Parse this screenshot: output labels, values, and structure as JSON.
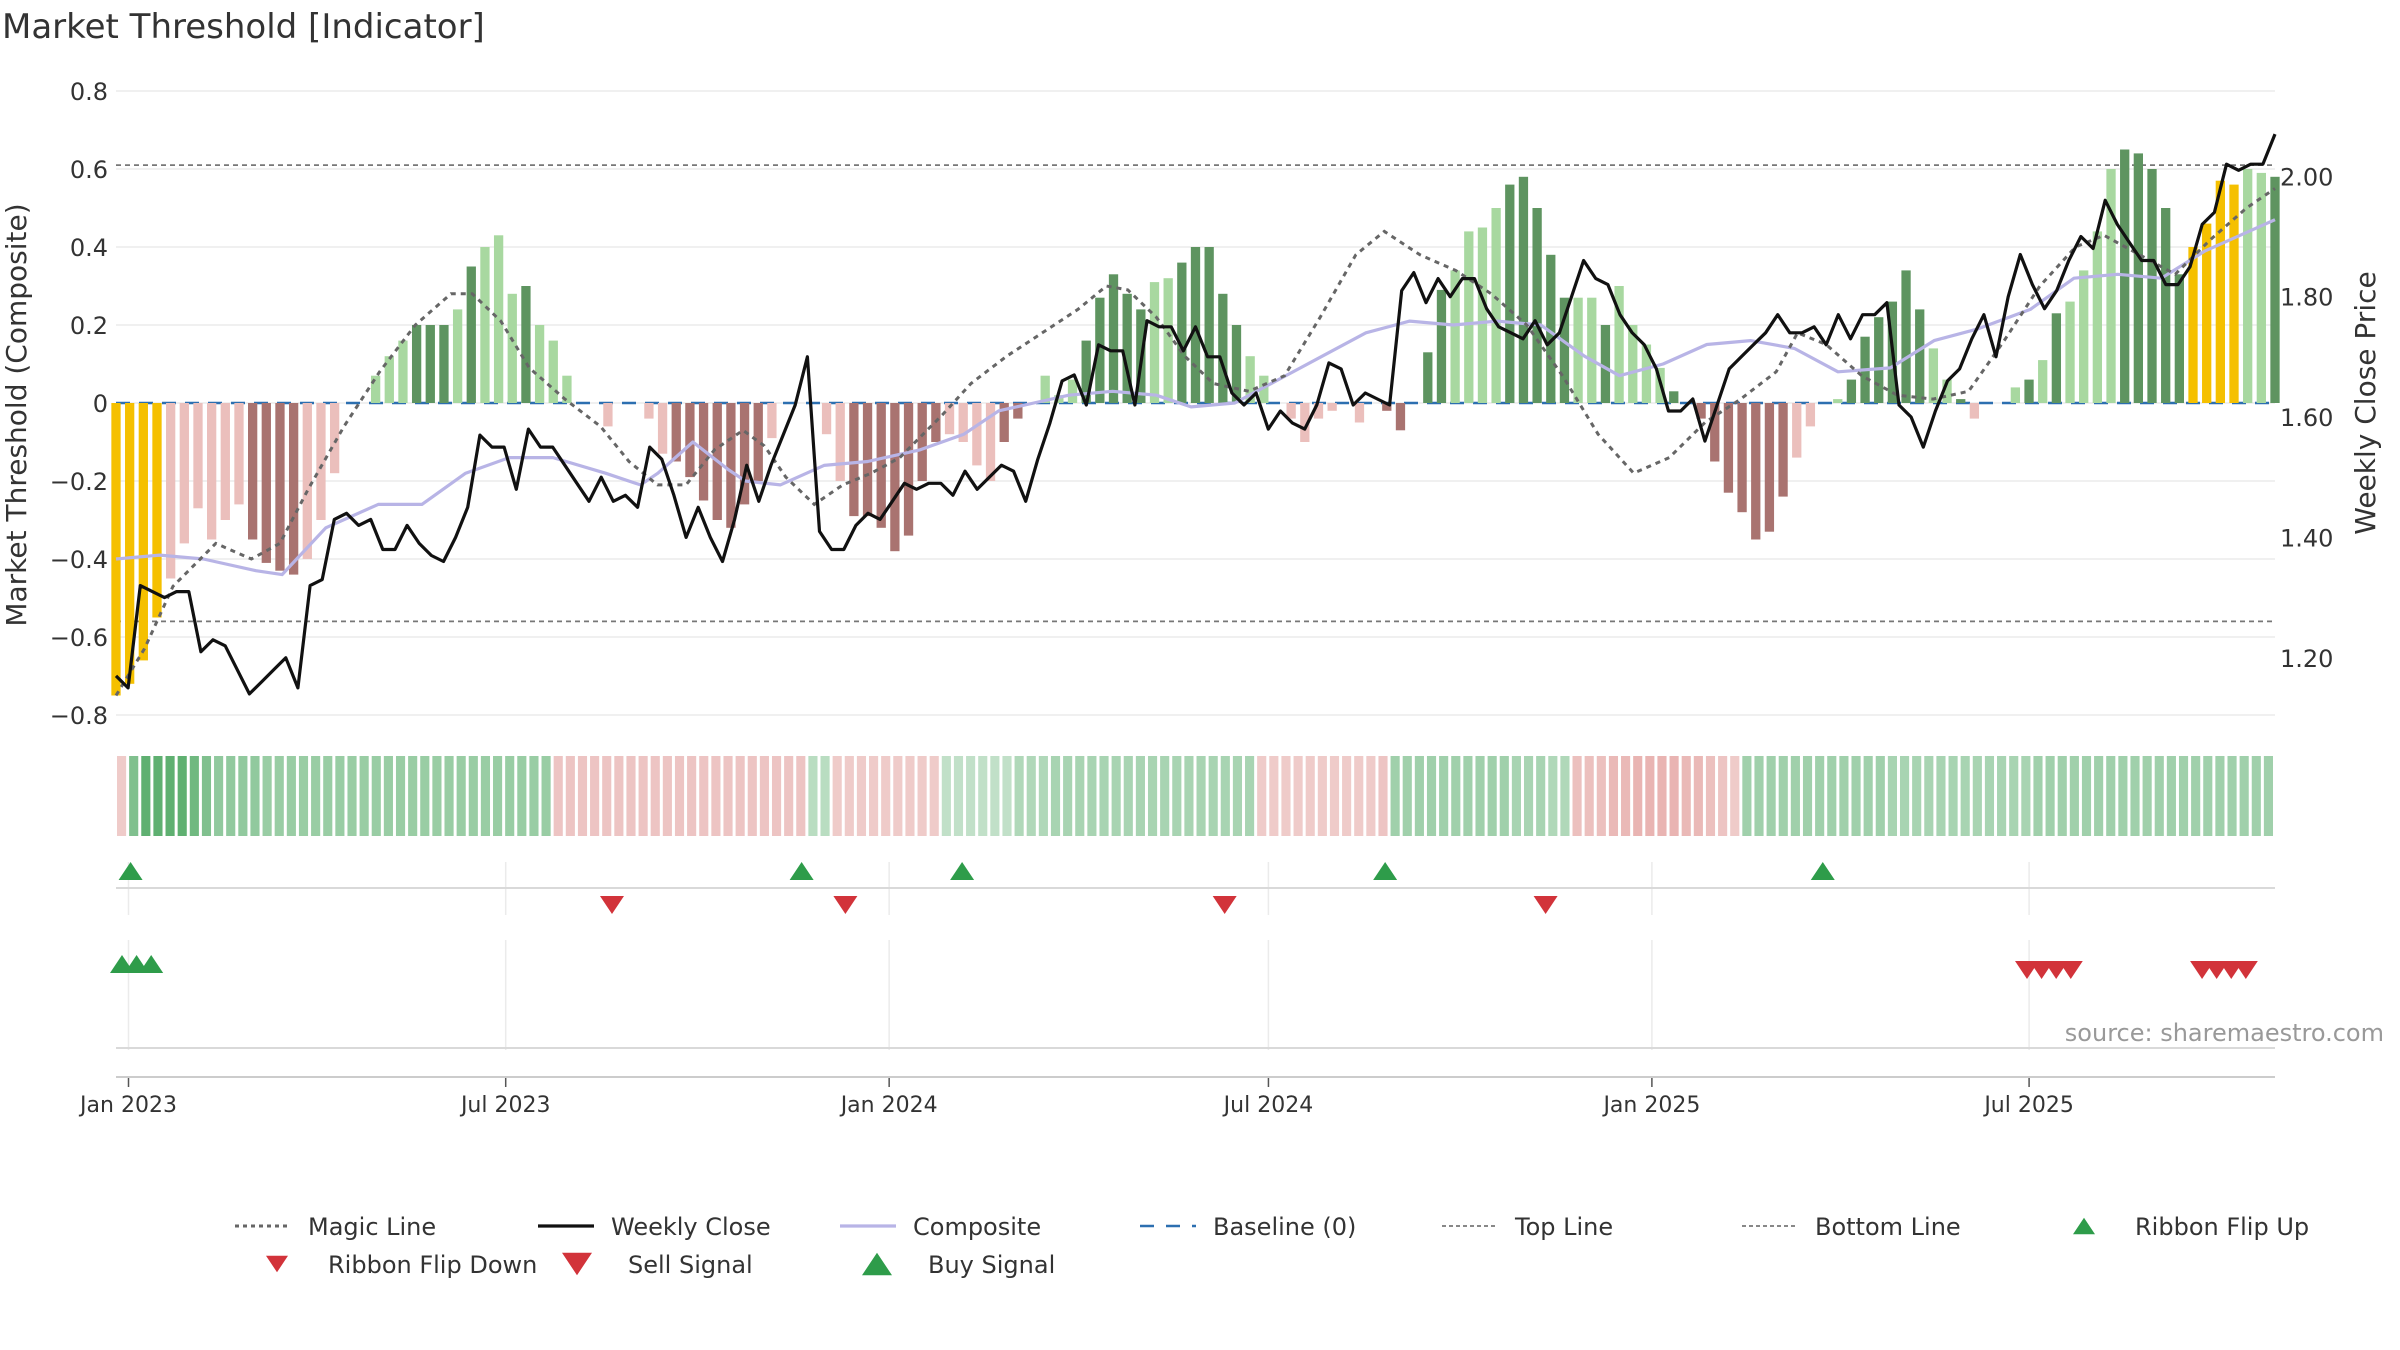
{
  "title": "Market Threshold [Indicator]",
  "source": "source: sharemaestro.com",
  "colors": {
    "background": "#ffffff",
    "text": "#333333",
    "grid": "#ebebeb",
    "bar_extreme": "#f5c000",
    "bar_up_strong": "#5e9460",
    "bar_up_weak": "#a8d8a0",
    "bar_down_strong": "#a97370",
    "bar_down_weak": "#ebbfbc",
    "magic_line": "#666666",
    "weekly_close": "#111111",
    "composite": "#b8b4e6",
    "baseline": "#2c6fb0",
    "ref_line": "#777777",
    "signal_up": "#2e9c4a",
    "signal_down": "#d2333a"
  },
  "chart_data": {
    "type": "bar",
    "x_type": "weekly dates",
    "x_start": "2022-12-26",
    "x_end": "2025-10-27",
    "left_axis": {
      "label": "Market Threshold (Composite)",
      "range": [
        -0.8,
        0.8
      ],
      "ticks": [
        "0.8",
        "0.6",
        "0.4",
        "0.2",
        "0",
        "−0.2",
        "−0.4",
        "−0.6",
        "−0.8"
      ]
    },
    "right_axis": {
      "label": "Weekly Close Price",
      "range": [
        1.1,
        2.14
      ],
      "ticks": [
        "2.00",
        "1.80",
        "1.60",
        "1.40",
        "1.20"
      ]
    },
    "x_ticks": [
      "Jan 2023",
      "Jul 2023",
      "Jan 2024",
      "Jul 2024",
      "Jan 2025",
      "Jul 2025"
    ],
    "x_tick_dates": [
      "2023-01-01",
      "2023-07-01",
      "2024-01-01",
      "2024-07-01",
      "2025-01-01",
      "2025-07-01"
    ],
    "top_line": 0.61,
    "bottom_line": -0.56,
    "baseline": 0,
    "grid": true,
    "legend_position": "bottom",
    "bars": [
      -0.75,
      -0.72,
      -0.66,
      -0.55,
      -0.45,
      -0.36,
      -0.27,
      -0.35,
      -0.3,
      -0.26,
      -0.35,
      -0.41,
      -0.43,
      -0.44,
      -0.4,
      -0.3,
      -0.18,
      0.0,
      0.0,
      0.07,
      0.12,
      0.16,
      0.2,
      0.2,
      0.2,
      0.24,
      0.35,
      0.4,
      0.43,
      0.28,
      0.3,
      0.2,
      0.16,
      0.07,
      0.0,
      0.0,
      -0.06,
      0.0,
      0.0,
      -0.04,
      -0.13,
      -0.15,
      -0.19,
      -0.25,
      -0.3,
      -0.32,
      -0.26,
      -0.2,
      -0.09,
      0.0,
      0.0,
      0.0,
      -0.08,
      -0.2,
      -0.29,
      -0.29,
      -0.32,
      -0.38,
      -0.34,
      -0.2,
      -0.1,
      -0.08,
      -0.1,
      -0.16,
      -0.2,
      -0.1,
      -0.04,
      0.0,
      0.07,
      0.02,
      0.06,
      0.16,
      0.27,
      0.33,
      0.28,
      0.24,
      0.31,
      0.32,
      0.36,
      0.4,
      0.4,
      0.28,
      0.2,
      0.12,
      0.07,
      0.0,
      -0.04,
      -0.1,
      -0.04,
      -0.02,
      0.0,
      -0.05,
      0.0,
      -0.02,
      -0.07,
      0.0,
      0.13,
      0.29,
      0.34,
      0.44,
      0.45,
      0.5,
      0.56,
      0.58,
      0.5,
      0.38,
      0.27,
      0.27,
      0.27,
      0.2,
      0.3,
      0.2,
      0.15,
      0.09,
      0.03,
      0.0,
      -0.04,
      -0.15,
      -0.23,
      -0.28,
      -0.35,
      -0.33,
      -0.24,
      -0.14,
      -0.06,
      0.0,
      0.01,
      0.06,
      0.17,
      0.22,
      0.26,
      0.34,
      0.24,
      0.14,
      0.06,
      0.01,
      -0.04,
      0.0,
      0.0,
      0.04,
      0.06,
      0.11,
      0.23,
      0.26,
      0.34,
      0.44,
      0.6,
      0.65,
      0.64,
      0.6,
      0.5,
      0.33,
      0.4,
      0.46,
      0.57,
      0.56,
      0.6,
      0.59,
      0.58
    ],
    "bar_classes": "EEEEWWWWWWSSSSWWWWWWWWSSSWSWWWSWWWWWWSWWWSSSSSSSWWWWWWSSSSSSSWWWWSSSWWWSSSSSWWSSSSSWWWWWWWWWSSSSSSWWWWSSSSSWWSWWWWSSSSSSSSSWWWWSSSSSSWWSWWWWSWSWWWWSSSSSEEEEWWSSSSEEEE",
    "series": [
      {
        "name": "Weekly Close",
        "axis": "right",
        "values": [
          1.17,
          1.15,
          1.32,
          1.31,
          1.3,
          1.31,
          1.31,
          1.21,
          1.23,
          1.22,
          1.18,
          1.14,
          1.16,
          1.18,
          1.2,
          1.15,
          1.32,
          1.33,
          1.43,
          1.44,
          1.42,
          1.43,
          1.38,
          1.38,
          1.42,
          1.39,
          1.37,
          1.36,
          1.4,
          1.45,
          1.57,
          1.55,
          1.55,
          1.48,
          1.58,
          1.55,
          1.55,
          1.52,
          1.49,
          1.46,
          1.5,
          1.46,
          1.47,
          1.45,
          1.55,
          1.53,
          1.47,
          1.4,
          1.45,
          1.4,
          1.36,
          1.43,
          1.52,
          1.46,
          1.52,
          1.57,
          1.62,
          1.7,
          1.41,
          1.38,
          1.38,
          1.42,
          1.44,
          1.43,
          1.46,
          1.49,
          1.48,
          1.49,
          1.49,
          1.47,
          1.51,
          1.48,
          1.5,
          1.52,
          1.51,
          1.46,
          1.53,
          1.59,
          1.66,
          1.67,
          1.62,
          1.72,
          1.71,
          1.71,
          1.62,
          1.76,
          1.75,
          1.75,
          1.71,
          1.75,
          1.7,
          1.7,
          1.64,
          1.62,
          1.64,
          1.58,
          1.61,
          1.59,
          1.58,
          1.62,
          1.69,
          1.68,
          1.62,
          1.64,
          1.63,
          1.62,
          1.81,
          1.84,
          1.79,
          1.83,
          1.8,
          1.83,
          1.83,
          1.78,
          1.75,
          1.74,
          1.73,
          1.76,
          1.72,
          1.74,
          1.8,
          1.86,
          1.83,
          1.82,
          1.77,
          1.74,
          1.72,
          1.68,
          1.61,
          1.61,
          1.63,
          1.56,
          1.62,
          1.68,
          1.7,
          1.72,
          1.74,
          1.77,
          1.74,
          1.74,
          1.75,
          1.72,
          1.77,
          1.73,
          1.77,
          1.77,
          1.79,
          1.62,
          1.6,
          1.55,
          1.61,
          1.66,
          1.68,
          1.73,
          1.77,
          1.7,
          1.8,
          1.87,
          1.82,
          1.78,
          1.81,
          1.86,
          1.9,
          1.88,
          1.96,
          1.92,
          1.89,
          1.86,
          1.86,
          1.82,
          1.82,
          1.85,
          1.92,
          1.94,
          2.02,
          2.01,
          2.02,
          2.02,
          2.07
        ]
      },
      {
        "name": "Composite",
        "axis": "left"
      },
      {
        "name": "Magic Line",
        "axis": "left"
      }
    ],
    "composite_keypoints": [
      [
        0,
        -0.4
      ],
      [
        5,
        -0.39
      ],
      [
        10,
        -0.4
      ],
      [
        16,
        -0.43
      ],
      [
        19,
        -0.44
      ],
      [
        24,
        -0.32
      ],
      [
        30,
        -0.26
      ],
      [
        35,
        -0.26
      ],
      [
        40,
        -0.18
      ],
      [
        45,
        -0.14
      ],
      [
        50,
        -0.14
      ],
      [
        56,
        -0.18
      ],
      [
        60,
        -0.21
      ],
      [
        62,
        -0.18
      ],
      [
        66,
        -0.1
      ],
      [
        70,
        -0.17
      ],
      [
        72,
        -0.2
      ],
      [
        76,
        -0.21
      ],
      [
        81,
        -0.16
      ],
      [
        86,
        -0.15
      ],
      [
        92,
        -0.12
      ],
      [
        97,
        -0.08
      ],
      [
        101,
        -0.02
      ],
      [
        105,
        0.0
      ],
      [
        109,
        0.02
      ],
      [
        114,
        0.03
      ],
      [
        119,
        0.02
      ],
      [
        123,
        -0.01
      ],
      [
        128,
        0.0
      ],
      [
        133,
        0.06
      ],
      [
        138,
        0.12
      ],
      [
        143,
        0.18
      ],
      [
        148,
        0.21
      ],
      [
        153,
        0.2
      ],
      [
        158,
        0.21
      ],
      [
        163,
        0.2
      ],
      [
        168,
        0.12
      ],
      [
        172,
        0.07
      ],
      [
        177,
        0.1
      ],
      [
        182,
        0.15
      ],
      [
        187,
        0.16
      ],
      [
        192,
        0.14
      ],
      [
        197,
        0.08
      ],
      [
        203,
        0.09
      ],
      [
        208,
        0.16
      ],
      [
        213,
        0.19
      ],
      [
        219,
        0.24
      ],
      [
        224,
        0.32
      ],
      [
        229,
        0.33
      ],
      [
        234,
        0.32
      ],
      [
        239,
        0.39
      ],
      [
        244,
        0.44
      ],
      [
        247,
        0.47
      ]
    ],
    "magic_keypoints": [
      [
        0,
        -0.75
      ],
      [
        4,
        -0.63
      ],
      [
        8,
        -0.47
      ],
      [
        14,
        -0.36
      ],
      [
        19,
        -0.4
      ],
      [
        23,
        -0.36
      ],
      [
        27,
        -0.22
      ],
      [
        32,
        -0.06
      ],
      [
        37,
        0.08
      ],
      [
        42,
        0.2
      ],
      [
        47,
        0.28
      ],
      [
        50,
        0.28
      ],
      [
        54,
        0.21
      ],
      [
        58,
        0.09
      ],
      [
        63,
        0.01
      ],
      [
        68,
        -0.06
      ],
      [
        72,
        -0.15
      ],
      [
        76,
        -0.21
      ],
      [
        80,
        -0.21
      ],
      [
        84,
        -0.12
      ],
      [
        88,
        -0.07
      ],
      [
        91,
        -0.11
      ],
      [
        94,
        -0.19
      ],
      [
        98,
        -0.26
      ],
      [
        102,
        -0.21
      ],
      [
        106,
        -0.18
      ],
      [
        110,
        -0.14
      ],
      [
        116,
        -0.03
      ],
      [
        120,
        0.05
      ],
      [
        125,
        0.12
      ],
      [
        130,
        0.18
      ],
      [
        135,
        0.24
      ],
      [
        139,
        0.3
      ],
      [
        142,
        0.29
      ],
      [
        146,
        0.22
      ],
      [
        150,
        0.12
      ],
      [
        154,
        0.05
      ],
      [
        159,
        0.03
      ],
      [
        164,
        0.07
      ],
      [
        169,
        0.22
      ],
      [
        174,
        0.38
      ],
      [
        178,
        0.44
      ],
      [
        183,
        0.38
      ],
      [
        188,
        0.34
      ],
      [
        193,
        0.28
      ],
      [
        198,
        0.2
      ],
      [
        203,
        0.07
      ],
      [
        208,
        -0.08
      ],
      [
        213,
        -0.18
      ],
      [
        218,
        -0.14
      ],
      [
        223,
        -0.05
      ],
      [
        228,
        0.01
      ],
      [
        233,
        0.08
      ],
      [
        236,
        0.18
      ],
      [
        240,
        0.15
      ],
      [
        245,
        0.07
      ],
      [
        250,
        0.02
      ],
      [
        255,
        0.01
      ],
      [
        260,
        0.03
      ],
      [
        265,
        0.16
      ],
      [
        270,
        0.3
      ],
      [
        275,
        0.4
      ],
      [
        279,
        0.43
      ],
      [
        284,
        0.38
      ],
      [
        289,
        0.33
      ],
      [
        294,
        0.42
      ],
      [
        299,
        0.5
      ],
      [
        303,
        0.55
      ]
    ],
    "ribbon": {
      "label": "Ribbon",
      "values": [
        -0.3,
        0.6,
        0.8,
        0.8,
        0.8,
        0.8,
        0.7,
        0.6,
        0.5,
        0.5,
        0.5,
        0.5,
        0.45,
        0.45,
        0.45,
        0.45,
        0.45,
        0.45,
        0.45,
        0.45,
        0.45,
        0.45,
        0.45,
        0.45,
        0.45,
        0.45,
        0.45,
        0.45,
        0.45,
        0.45,
        0.45,
        0.45,
        0.45,
        0.45,
        0.45,
        0.45,
        -0.35,
        -0.35,
        -0.35,
        -0.35,
        -0.35,
        -0.35,
        -0.35,
        -0.35,
        -0.35,
        -0.35,
        -0.35,
        -0.35,
        -0.35,
        -0.35,
        -0.35,
        -0.35,
        -0.35,
        -0.35,
        -0.35,
        -0.35,
        -0.35,
        0.25,
        0.25,
        -0.3,
        -0.3,
        -0.3,
        -0.3,
        -0.3,
        -0.3,
        -0.3,
        -0.3,
        -0.3,
        0.2,
        0.2,
        0.2,
        0.2,
        0.2,
        0.2,
        0.3,
        0.3,
        0.3,
        0.35,
        0.35,
        0.35,
        0.35,
        0.35,
        0.35,
        0.35,
        0.35,
        0.35,
        0.35,
        0.35,
        0.35,
        0.35,
        0.35,
        0.35,
        0.35,
        0.35,
        -0.3,
        -0.3,
        -0.3,
        -0.3,
        -0.3,
        -0.3,
        -0.3,
        -0.3,
        -0.3,
        -0.3,
        -0.35,
        0.4,
        0.4,
        0.4,
        0.4,
        0.4,
        0.4,
        0.4,
        0.4,
        0.4,
        0.4,
        0.35,
        0.35,
        0.35,
        0.3,
        0.3,
        -0.4,
        -0.4,
        -0.4,
        -0.45,
        -0.45,
        -0.5,
        -0.5,
        -0.5,
        -0.5,
        -0.45,
        -0.45,
        -0.4,
        -0.35,
        -0.3,
        0.4,
        0.4,
        0.4,
        0.4,
        0.4,
        0.4,
        0.4,
        0.4,
        0.4,
        0.4,
        0.4,
        0.4,
        0.35,
        0.35,
        0.35,
        0.35,
        0.35,
        0.35,
        0.35,
        0.35,
        0.35,
        0.35,
        0.35,
        0.35,
        0.4,
        0.4,
        0.4,
        0.4,
        0.4,
        0.4,
        0.4,
        0.4,
        0.4,
        0.4,
        0.4,
        0.4,
        0.4,
        0.4,
        0.4,
        0.4,
        0.4,
        0.4,
        0.4,
        0.4
      ]
    },
    "signals": {
      "ribbon_flip_up": [
        "2023-01-02",
        "2023-11-20",
        "2024-02-05",
        "2024-08-26",
        "2025-03-24"
      ],
      "ribbon_flip_down": [
        "2023-08-21",
        "2023-12-11",
        "2024-06-10",
        "2024-11-11"
      ],
      "buy_signal": [
        "2022-12-26",
        "2023-01-02",
        "2023-01-09"
      ],
      "sell_signal": [
        "2025-06-30",
        "2025-07-07",
        "2025-07-14",
        "2025-07-21",
        "2025-09-22",
        "2025-09-29",
        "2025-10-06",
        "2025-10-13"
      ]
    }
  },
  "legend": [
    {
      "name": "Magic Line",
      "symbol": "dotted"
    },
    {
      "name": "Weekly Close",
      "symbol": "solid"
    },
    {
      "name": "Composite",
      "symbol": "composite"
    },
    {
      "name": "Baseline (0)",
      "symbol": "dashed"
    },
    {
      "name": "Top Line",
      "symbol": "ref"
    },
    {
      "name": "Bottom Line",
      "symbol": "ref"
    },
    {
      "name": "Ribbon Flip Up",
      "symbol": "tri-up-small"
    },
    {
      "name": "Ribbon Flip Down",
      "symbol": "tri-down-small"
    },
    {
      "name": "Sell Signal",
      "symbol": "tri-down"
    },
    {
      "name": "Buy Signal",
      "symbol": "tri-up"
    }
  ]
}
